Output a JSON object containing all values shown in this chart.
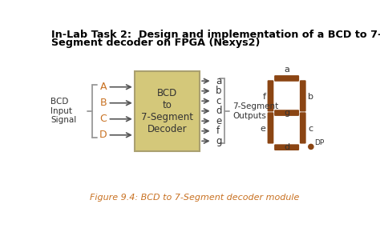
{
  "title_line1": "In-Lab Task 2:  Design and implementation of a BCD to 7-",
  "title_line2": "Segment decoder on FPGA (Nexys2)",
  "caption": "Figure 9.4: BCD to 7-Segment decoder module",
  "box_color": "#d4c87a",
  "box_edge_color": "#aaa070",
  "seg_color": "#8B4513",
  "arrow_color": "#555555",
  "text_color": "#333333",
  "orange_text": "#c87020",
  "brace_color": "#999999",
  "inputs": [
    "A",
    "B",
    "C",
    "D"
  ],
  "outputs": [
    "a",
    "b",
    "c",
    "d",
    "e",
    "f",
    "g"
  ],
  "box_label": "BCD\nto\n7-Segment\nDecoder",
  "left_label": "BCD\nInput\nSignal",
  "right_label": "7-Segment\nOutputs"
}
